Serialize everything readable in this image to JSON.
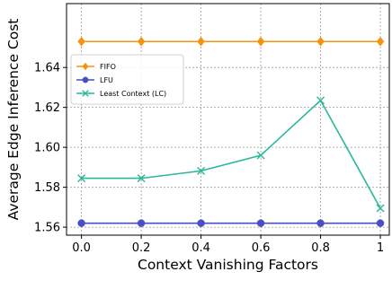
{
  "chart_data": {
    "type": "line",
    "x": [
      0.0,
      0.2,
      0.4,
      0.6,
      0.8,
      1
    ],
    "x_tick_labels": [
      "0.0",
      "0.2",
      "0.4",
      "0.6",
      "0.8",
      "1"
    ],
    "xlabel": "Context Vanishing Factors",
    "ylabel": "Average Edge Inference Cost",
    "xlim": [
      -0.05,
      1.03
    ],
    "ylim": [
      1.556,
      1.672
    ],
    "y_ticks": [
      1.56,
      1.58,
      1.6,
      1.62,
      1.64
    ],
    "y_tick_labels": [
      "1.56",
      "1.58",
      "1.60",
      "1.62",
      "1.64"
    ],
    "grid": true,
    "legend_position": "upper-left",
    "series": [
      {
        "name": "FIFO",
        "color": "#f5940f",
        "marker": "diamond",
        "values": [
          1.653,
          1.653,
          1.653,
          1.653,
          1.653,
          1.653
        ]
      },
      {
        "name": "LFU",
        "color": "#4a4fc4",
        "marker": "circle",
        "values": [
          1.562,
          1.562,
          1.562,
          1.562,
          1.562,
          1.562
        ]
      },
      {
        "name": "Least Context (LC)",
        "color": "#2bb79a",
        "marker": "x",
        "values": [
          1.5845,
          1.5845,
          1.5882,
          1.596,
          1.6235,
          1.5695
        ]
      }
    ]
  }
}
